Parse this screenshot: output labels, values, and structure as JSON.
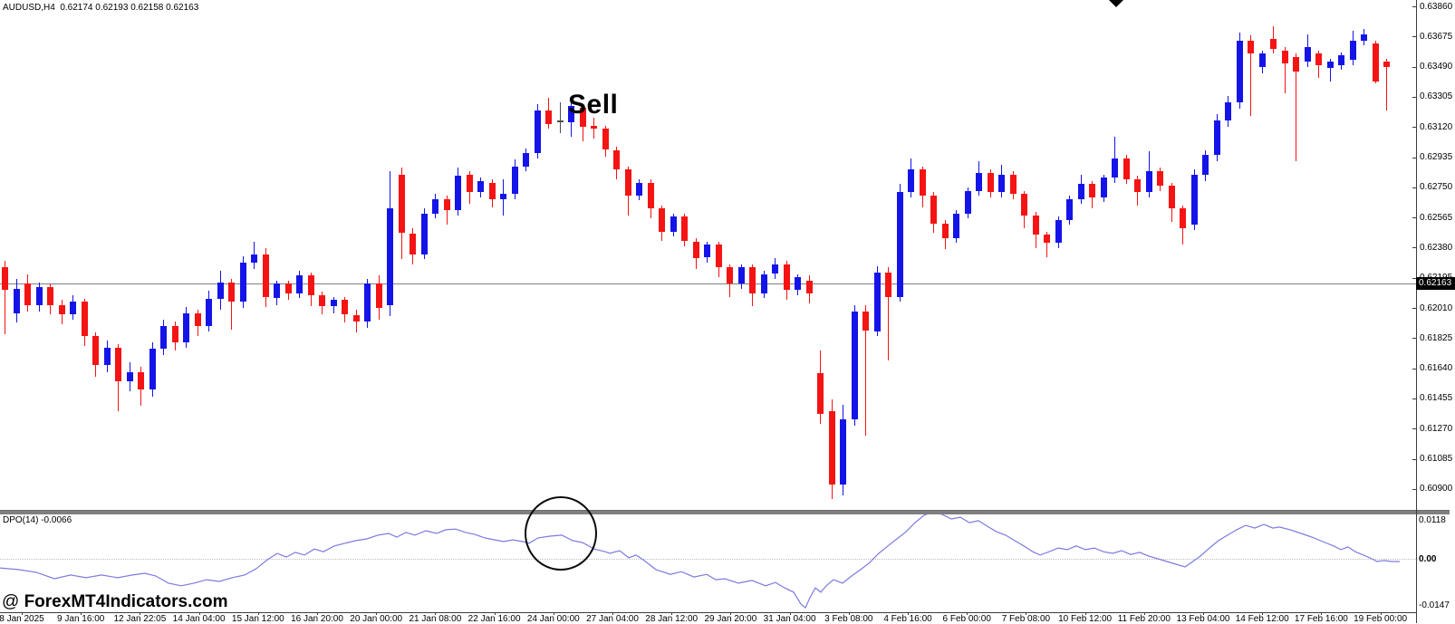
{
  "header": {
    "quote": "AUDUSD,H4  0.62174 0.62193 0.62158 0.62163"
  },
  "annotations": {
    "sell": "Sell",
    "watermark_at": "@ ",
    "watermark": "ForexMT4Indicators.com"
  },
  "indicator_pane": {
    "label": "DPO(14) -0.0066",
    "axis_labels": [
      "0.0118",
      "0.00",
      "-0.0147"
    ]
  },
  "price_axis": {
    "current_price": "0.62163",
    "labels": [
      "0.63860",
      "0.63675",
      "0.63490",
      "0.63305",
      "0.63120",
      "0.62935",
      "0.62750",
      "0.62565",
      "0.62380",
      "0.62195",
      "0.62010",
      "0.61825",
      "0.61640",
      "0.61455",
      "0.61270",
      "0.61085",
      "0.60900"
    ]
  },
  "time_axis": {
    "labels": [
      "8 Jan 2025",
      "9 Jan 16:00",
      "12 Jan 22:05",
      "14 Jan 04:00",
      "15 Jan 12:00",
      "16 Jan 20:00",
      "20 Jan 00:00",
      "21 Jan 08:00",
      "22 Jan 16:00",
      "24 Jan 00:00",
      "27 Jan 04:00",
      "28 Jan 12:00",
      "29 Jan 20:00",
      "31 Jan 04:00",
      "3 Feb 08:00",
      "4 Feb 16:00",
      "6 Feb 00:00",
      "7 Feb 08:00",
      "10 Feb 12:00",
      "11 Feb 20:00",
      "13 Feb 04:00",
      "14 Feb 12:00",
      "17 Feb 16:00",
      "19 Feb 00:00"
    ]
  },
  "colors": {
    "bull": "#1414e8",
    "bear": "#f41414",
    "gray_doji": "#4d4d4d",
    "dpo_line": "#7b7be0"
  },
  "chart_data": {
    "type": "candlestick",
    "symbol": "AUDUSD",
    "timeframe": "H4",
    "quote_ohlc": {
      "open": 0.62174,
      "high": 0.62193,
      "low": 0.62158,
      "close": 0.62163
    },
    "title": "AUDUSD H4 candlestick chart with DPO(14) indicator",
    "price_axis_top": 0.6386,
    "price_axis_step": 0.00185,
    "current_price": 0.62163,
    "candles": [
      [
        0.6226,
        0.623,
        0.6185,
        0.6212
      ],
      [
        0.6198,
        0.6219,
        0.6192,
        0.6213
      ],
      [
        0.6216,
        0.6222,
        0.6199,
        0.6203
      ],
      [
        0.6203,
        0.6217,
        0.6199,
        0.6214
      ],
      [
        0.6214,
        0.6216,
        0.6197,
        0.6203
      ],
      [
        0.6203,
        0.6206,
        0.6191,
        0.6197
      ],
      [
        0.6197,
        0.6209,
        0.6194,
        0.6205
      ],
      [
        0.6205,
        0.6207,
        0.6178,
        0.6184
      ],
      [
        0.6184,
        0.6186,
        0.6159,
        0.6166
      ],
      [
        0.6166,
        0.6181,
        0.6162,
        0.6177
      ],
      [
        0.6177,
        0.6179,
        0.6138,
        0.6156
      ],
      [
        0.6156,
        0.6168,
        0.615,
        0.6162
      ],
      [
        0.6162,
        0.6165,
        0.6141,
        0.6151
      ],
      [
        0.6151,
        0.618,
        0.6147,
        0.6176
      ],
      [
        0.6176,
        0.6194,
        0.6172,
        0.619
      ],
      [
        0.619,
        0.6193,
        0.6175,
        0.618
      ],
      [
        0.618,
        0.6202,
        0.6177,
        0.6198
      ],
      [
        0.6198,
        0.62,
        0.6184,
        0.619
      ],
      [
        0.619,
        0.6212,
        0.6187,
        0.6207
      ],
      [
        0.6207,
        0.6224,
        0.62,
        0.6217
      ],
      [
        0.6217,
        0.6219,
        0.6188,
        0.6205
      ],
      [
        0.6205,
        0.6233,
        0.6201,
        0.6229
      ],
      [
        0.6229,
        0.6242,
        0.6225,
        0.6234
      ],
      [
        0.6234,
        0.6238,
        0.6202,
        0.6208
      ],
      [
        0.6207,
        0.6218,
        0.6203,
        0.6216
      ],
      [
        0.6216,
        0.6218,
        0.6206,
        0.621
      ],
      [
        0.621,
        0.6224,
        0.6207,
        0.6221
      ],
      [
        0.6221,
        0.6223,
        0.6202,
        0.6209
      ],
      [
        0.6209,
        0.6211,
        0.6197,
        0.6202
      ],
      [
        0.6202,
        0.6208,
        0.6198,
        0.6206
      ],
      [
        0.6206,
        0.6208,
        0.6192,
        0.6197
      ],
      [
        0.6197,
        0.62,
        0.6186,
        0.6193
      ],
      [
        0.6193,
        0.6219,
        0.6189,
        0.6216
      ],
      [
        0.6216,
        0.6221,
        0.6194,
        0.6201
      ],
      [
        0.6203,
        0.6285,
        0.6196,
        0.6262
      ],
      [
        0.6283,
        0.6287,
        0.6231,
        0.6247
      ],
      [
        0.6247,
        0.625,
        0.6228,
        0.6234
      ],
      [
        0.6234,
        0.6262,
        0.6231,
        0.6259
      ],
      [
        0.6259,
        0.6271,
        0.6256,
        0.6268
      ],
      [
        0.6268,
        0.627,
        0.6252,
        0.6261
      ],
      [
        0.6261,
        0.6287,
        0.6258,
        0.6282
      ],
      [
        0.6283,
        0.6285,
        0.6265,
        0.6272
      ],
      [
        0.6272,
        0.6281,
        0.6269,
        0.6279
      ],
      [
        0.6278,
        0.628,
        0.6263,
        0.6268
      ],
      [
        0.6268,
        0.628,
        0.6258,
        0.6271
      ],
      [
        0.6271,
        0.6292,
        0.6268,
        0.6288
      ],
      [
        0.6288,
        0.6299,
        0.6285,
        0.6296
      ],
      [
        0.6296,
        0.6326,
        0.6293,
        0.6322
      ],
      [
        0.6322,
        0.633,
        0.6311,
        0.6314
      ],
      [
        0.6316,
        0.6327,
        0.6308,
        0.6315
      ],
      [
        0.6315,
        0.6327,
        0.6306,
        0.6325
      ],
      [
        0.6324,
        0.6326,
        0.6303,
        0.6312
      ],
      [
        0.6313,
        0.6318,
        0.6305,
        0.6311
      ],
      [
        0.6311,
        0.6313,
        0.6294,
        0.6298
      ],
      [
        0.6298,
        0.63,
        0.628,
        0.6286
      ],
      [
        0.6286,
        0.6288,
        0.6258,
        0.627
      ],
      [
        0.627,
        0.628,
        0.6267,
        0.6278
      ],
      [
        0.6278,
        0.628,
        0.6256,
        0.6262
      ],
      [
        0.6262,
        0.6264,
        0.6242,
        0.6248
      ],
      [
        0.6248,
        0.6259,
        0.6245,
        0.6257
      ],
      [
        0.6257,
        0.6259,
        0.6239,
        0.6242
      ],
      [
        0.6242,
        0.6244,
        0.6225,
        0.6232
      ],
      [
        0.6232,
        0.6242,
        0.6229,
        0.624
      ],
      [
        0.624,
        0.6242,
        0.622,
        0.6226
      ],
      [
        0.6226,
        0.6228,
        0.6208,
        0.6216
      ],
      [
        0.6216,
        0.6228,
        0.6213,
        0.6226
      ],
      [
        0.6226,
        0.6228,
        0.6202,
        0.621
      ],
      [
        0.621,
        0.6224,
        0.6207,
        0.6222
      ],
      [
        0.6222,
        0.6232,
        0.6219,
        0.6228
      ],
      [
        0.6228,
        0.623,
        0.6206,
        0.6212
      ],
      [
        0.6212,
        0.6222,
        0.6209,
        0.622
      ],
      [
        0.6218,
        0.6221,
        0.6204,
        0.621
      ],
      [
        0.6161,
        0.6175,
        0.613,
        0.6136
      ],
      [
        0.6138,
        0.6145,
        0.6084,
        0.6093
      ],
      [
        0.6093,
        0.6142,
        0.6086,
        0.6133
      ],
      [
        0.6133,
        0.6203,
        0.6129,
        0.6199
      ],
      [
        0.6199,
        0.6203,
        0.6123,
        0.6187
      ],
      [
        0.6187,
        0.6227,
        0.6184,
        0.6223
      ],
      [
        0.6223,
        0.6226,
        0.6169,
        0.6208
      ],
      [
        0.6208,
        0.6277,
        0.6205,
        0.6272
      ],
      [
        0.6272,
        0.6293,
        0.6269,
        0.6286
      ],
      [
        0.6286,
        0.6288,
        0.6263,
        0.627
      ],
      [
        0.627,
        0.6272,
        0.6247,
        0.6253
      ],
      [
        0.6253,
        0.6255,
        0.6237,
        0.6244
      ],
      [
        0.6244,
        0.6261,
        0.6241,
        0.6259
      ],
      [
        0.6259,
        0.6275,
        0.6256,
        0.6273
      ],
      [
        0.6273,
        0.6291,
        0.627,
        0.6284
      ],
      [
        0.6284,
        0.6286,
        0.6269,
        0.6272
      ],
      [
        0.6272,
        0.6289,
        0.6269,
        0.6283
      ],
      [
        0.6283,
        0.6285,
        0.6268,
        0.6271
      ],
      [
        0.6271,
        0.6273,
        0.625,
        0.6258
      ],
      [
        0.6258,
        0.626,
        0.6238,
        0.6246
      ],
      [
        0.6246,
        0.6248,
        0.6232,
        0.6241
      ],
      [
        0.6241,
        0.6257,
        0.6238,
        0.6255
      ],
      [
        0.6255,
        0.627,
        0.6252,
        0.6268
      ],
      [
        0.6268,
        0.6283,
        0.6265,
        0.6277
      ],
      [
        0.6277,
        0.6279,
        0.6262,
        0.6269
      ],
      [
        0.6269,
        0.6283,
        0.6266,
        0.6281
      ],
      [
        0.6281,
        0.6306,
        0.6278,
        0.6293
      ],
      [
        0.6293,
        0.6295,
        0.6277,
        0.628
      ],
      [
        0.628,
        0.6282,
        0.6264,
        0.6272
      ],
      [
        0.6272,
        0.6297,
        0.6269,
        0.6285
      ],
      [
        0.6285,
        0.6287,
        0.6273,
        0.6276
      ],
      [
        0.6276,
        0.6278,
        0.6254,
        0.6262
      ],
      [
        0.6262,
        0.6264,
        0.624,
        0.625
      ],
      [
        0.6252,
        0.6286,
        0.6249,
        0.6283
      ],
      [
        0.6283,
        0.6298,
        0.6279,
        0.6295
      ],
      [
        0.6295,
        0.632,
        0.6291,
        0.6316
      ],
      [
        0.6316,
        0.6331,
        0.6312,
        0.6327
      ],
      [
        0.6327,
        0.637,
        0.6323,
        0.6365
      ],
      [
        0.6365,
        0.6368,
        0.6319,
        0.6357
      ],
      [
        0.6349,
        0.6359,
        0.6345,
        0.6357
      ],
      [
        0.6366,
        0.6374,
        0.6357,
        0.636
      ],
      [
        0.6359,
        0.6361,
        0.6333,
        0.6351
      ],
      [
        0.6355,
        0.6357,
        0.6291,
        0.6346
      ],
      [
        0.6352,
        0.6369,
        0.6349,
        0.6361
      ],
      [
        0.6357,
        0.6359,
        0.6342,
        0.635
      ],
      [
        0.6348,
        0.6354,
        0.634,
        0.6352
      ],
      [
        0.635,
        0.6358,
        0.6347,
        0.6356
      ],
      [
        0.6353,
        0.6371,
        0.635,
        0.6365
      ],
      [
        0.6365,
        0.6372,
        0.6362,
        0.6369
      ],
      [
        0.6363,
        0.6365,
        0.6339,
        0.634
      ],
      [
        0.6352,
        0.6354,
        0.6322,
        0.6349
      ]
    ],
    "special_candle": {
      "index": 49,
      "style": "gray-doji"
    },
    "indicator": {
      "name": "DPO",
      "period": 14,
      "displayed_value": -0.0066,
      "range": [
        -0.0147,
        0.0118
      ],
      "zero_level": 0.0,
      "points": [
        [
          0,
          -0.0027
        ],
        [
          20,
          -0.0032
        ],
        [
          40,
          -0.004
        ],
        [
          60,
          -0.0059
        ],
        [
          78,
          -0.0048
        ],
        [
          95,
          -0.0056
        ],
        [
          112,
          -0.0048
        ],
        [
          130,
          -0.0056
        ],
        [
          146,
          -0.0048
        ],
        [
          160,
          -0.0043
        ],
        [
          172,
          -0.0051
        ],
        [
          186,
          -0.0072
        ],
        [
          200,
          -0.008
        ],
        [
          214,
          -0.0072
        ],
        [
          228,
          -0.0062
        ],
        [
          242,
          -0.0067
        ],
        [
          256,
          -0.0056
        ],
        [
          270,
          -0.0048
        ],
        [
          283,
          -0.0029
        ],
        [
          295,
          -0.0003
        ],
        [
          306,
          0.0016
        ],
        [
          316,
          0.0005
        ],
        [
          326,
          0.0019
        ],
        [
          336,
          0.0011
        ],
        [
          347,
          0.0029
        ],
        [
          357,
          0.0021
        ],
        [
          369,
          0.0038
        ],
        [
          381,
          0.0046
        ],
        [
          393,
          0.0054
        ],
        [
          405,
          0.0059
        ],
        [
          417,
          0.007
        ],
        [
          429,
          0.0075
        ],
        [
          438,
          0.0064
        ],
        [
          448,
          0.0078
        ],
        [
          458,
          0.007
        ],
        [
          470,
          0.0083
        ],
        [
          482,
          0.0075
        ],
        [
          492,
          0.0086
        ],
        [
          503,
          0.0088
        ],
        [
          514,
          0.0078
        ],
        [
          524,
          0.0072
        ],
        [
          535,
          0.0062
        ],
        [
          546,
          0.0056
        ],
        [
          556,
          0.0051
        ],
        [
          566,
          0.0056
        ],
        [
          577,
          0.0051
        ],
        [
          584,
          0.0046
        ],
        [
          594,
          0.0062
        ],
        [
          607,
          0.0067
        ],
        [
          620,
          0.007
        ],
        [
          632,
          0.0054
        ],
        [
          643,
          0.0048
        ],
        [
          656,
          0.0029
        ],
        [
          668,
          0.0021
        ],
        [
          673,
          0.0016
        ],
        [
          684,
          0.0024
        ],
        [
          694,
          0.0003
        ],
        [
          702,
          0.0011
        ],
        [
          710,
          -0.0003
        ],
        [
          724,
          -0.0032
        ],
        [
          740,
          -0.0046
        ],
        [
          752,
          -0.0038
        ],
        [
          766,
          -0.0054
        ],
        [
          780,
          -0.0046
        ],
        [
          790,
          -0.0062
        ],
        [
          800,
          -0.0059
        ],
        [
          815,
          -0.0072
        ],
        [
          830,
          -0.0064
        ],
        [
          845,
          -0.008
        ],
        [
          856,
          -0.007
        ],
        [
          866,
          -0.0086
        ],
        [
          876,
          -0.0099
        ],
        [
          884,
          -0.0134
        ],
        [
          889,
          -0.0145
        ],
        [
          894,
          -0.0115
        ],
        [
          900,
          -0.0086
        ],
        [
          906,
          -0.0099
        ],
        [
          912,
          -0.008
        ],
        [
          920,
          -0.0062
        ],
        [
          930,
          -0.0072
        ],
        [
          940,
          -0.0051
        ],
        [
          950,
          -0.0032
        ],
        [
          960,
          -0.0011
        ],
        [
          970,
          0.0016
        ],
        [
          980,
          0.0038
        ],
        [
          990,
          0.0059
        ],
        [
          1000,
          0.008
        ],
        [
          1010,
          0.0107
        ],
        [
          1020,
          0.0129
        ],
        [
          1030,
          0.0139
        ],
        [
          1040,
          0.0131
        ],
        [
          1050,
          0.0118
        ],
        [
          1060,
          0.0123
        ],
        [
          1070,
          0.0107
        ],
        [
          1080,
          0.0113
        ],
        [
          1090,
          0.0096
        ],
        [
          1100,
          0.008
        ],
        [
          1110,
          0.007
        ],
        [
          1120,
          0.0054
        ],
        [
          1130,
          0.0038
        ],
        [
          1140,
          0.0021
        ],
        [
          1148,
          0.0011
        ],
        [
          1158,
          0.0021
        ],
        [
          1168,
          0.0032
        ],
        [
          1178,
          0.0027
        ],
        [
          1188,
          0.0038
        ],
        [
          1198,
          0.0027
        ],
        [
          1208,
          0.0032
        ],
        [
          1218,
          0.0021
        ],
        [
          1228,
          0.0016
        ],
        [
          1238,
          0.0024
        ],
        [
          1248,
          0.0013
        ],
        [
          1258,
          0.0019
        ],
        [
          1268,
          0.0008
        ],
        [
          1278,
          0.0
        ],
        [
          1288,
          -0.0008
        ],
        [
          1298,
          -0.0016
        ],
        [
          1308,
          -0.0024
        ],
        [
          1315,
          -0.0011
        ],
        [
          1325,
          0.0008
        ],
        [
          1335,
          0.0032
        ],
        [
          1345,
          0.0054
        ],
        [
          1355,
          0.007
        ],
        [
          1365,
          0.0086
        ],
        [
          1375,
          0.0099
        ],
        [
          1385,
          0.0091
        ],
        [
          1395,
          0.0102
        ],
        [
          1405,
          0.0091
        ],
        [
          1412,
          0.0094
        ],
        [
          1424,
          0.0086
        ],
        [
          1436,
          0.0075
        ],
        [
          1448,
          0.0064
        ],
        [
          1460,
          0.0051
        ],
        [
          1472,
          0.0038
        ],
        [
          1480,
          0.0027
        ],
        [
          1488,
          0.0035
        ],
        [
          1496,
          0.0021
        ],
        [
          1505,
          0.0011
        ],
        [
          1512,
          0.0003
        ],
        [
          1520,
          -0.0008
        ],
        [
          1528,
          -0.0005
        ],
        [
          1536,
          -0.0008
        ],
        [
          1545,
          -0.0008
        ]
      ]
    }
  }
}
